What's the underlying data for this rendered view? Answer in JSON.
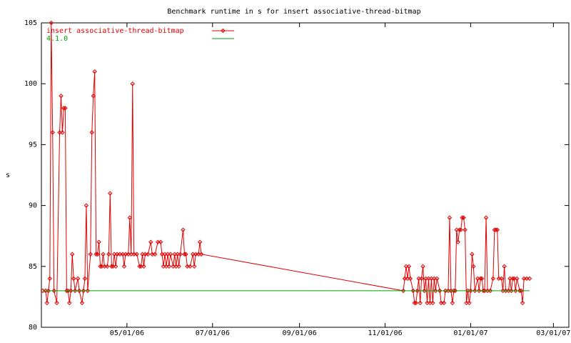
{
  "chart_data": {
    "type": "line",
    "title": "Benchmark runtime in s for insert associative-thread-bitmap",
    "y_label": "s",
    "legend": "top-left",
    "xlim": [
      "2006-03-01",
      "2007-03-12"
    ],
    "xticks": [
      {
        "value": "2006-05-01",
        "label": "05/01/06"
      },
      {
        "value": "2006-07-01",
        "label": "07/01/06"
      },
      {
        "value": "2006-09-01",
        "label": "09/01/06"
      },
      {
        "value": "2006-11-01",
        "label": "11/01/06"
      },
      {
        "value": "2007-01-01",
        "label": "01/01/07"
      },
      {
        "value": "2007-03-01",
        "label": "03/01/07"
      }
    ],
    "ylim": [
      80,
      105
    ],
    "yticks": [
      80,
      85,
      90,
      95,
      100,
      105
    ],
    "series": [
      {
        "name": "insert associative-thread-bitmap",
        "color": "#e00000",
        "markers": true,
        "x": [
          "2006-03-02",
          "2006-03-04",
          "2006-03-05",
          "2006-03-06",
          "2006-03-07",
          "2006-03-08",
          "2006-03-09",
          "2006-03-10",
          "2006-03-12",
          "2006-03-14",
          "2006-03-15",
          "2006-03-16",
          "2006-03-17",
          "2006-03-18",
          "2006-03-19",
          "2006-03-20",
          "2006-03-21",
          "2006-03-22",
          "2006-03-23",
          "2006-03-24",
          "2006-03-25",
          "2006-03-27",
          "2006-03-28",
          "2006-03-30",
          "2006-03-31",
          "2006-04-01",
          "2006-04-02",
          "2006-04-03",
          "2006-04-05",
          "2006-04-06",
          "2006-04-07",
          "2006-04-08",
          "2006-04-09",
          "2006-04-10",
          "2006-04-11",
          "2006-04-12",
          "2006-04-13",
          "2006-04-14",
          "2006-04-15",
          "2006-04-17",
          "2006-04-18",
          "2006-04-19",
          "2006-04-20",
          "2006-04-21",
          "2006-04-22",
          "2006-04-23",
          "2006-04-24",
          "2006-04-26",
          "2006-04-28",
          "2006-04-29",
          "2006-04-30",
          "2006-05-02",
          "2006-05-03",
          "2006-05-04",
          "2006-05-05",
          "2006-05-06",
          "2006-05-08",
          "2006-05-10",
          "2006-05-11",
          "2006-05-12",
          "2006-05-13",
          "2006-05-14",
          "2006-05-16",
          "2006-05-18",
          "2006-05-19",
          "2006-05-21",
          "2006-05-23",
          "2006-05-25",
          "2006-05-26",
          "2006-05-27",
          "2006-05-28",
          "2006-05-29",
          "2006-05-30",
          "2006-05-31",
          "2006-06-01",
          "2006-06-03",
          "2006-06-04",
          "2006-06-05",
          "2006-06-06",
          "2006-06-07",
          "2006-06-08",
          "2006-06-10",
          "2006-06-11",
          "2006-06-12",
          "2006-06-13",
          "2006-06-15",
          "2006-06-17",
          "2006-06-18",
          "2006-06-19",
          "2006-06-21",
          "2006-06-22",
          "2006-06-23",
          "2006-11-14",
          "2006-11-15",
          "2006-11-16",
          "2006-11-17",
          "2006-11-18",
          "2006-11-19",
          "2006-11-21",
          "2006-11-22",
          "2006-11-23",
          "2006-11-24",
          "2006-11-25",
          "2006-11-26",
          "2006-11-27",
          "2006-11-28",
          "2006-11-29",
          "2006-11-30",
          "2006-12-01",
          "2006-12-02",
          "2006-12-03",
          "2006-12-04",
          "2006-12-05",
          "2006-12-06",
          "2006-12-07",
          "2006-12-08",
          "2006-12-10",
          "2006-12-11",
          "2006-12-13",
          "2006-12-14",
          "2006-12-16",
          "2006-12-17",
          "2006-12-18",
          "2006-12-19",
          "2006-12-20",
          "2006-12-21",
          "2006-12-22",
          "2006-12-23",
          "2006-12-24",
          "2006-12-25",
          "2006-12-26",
          "2006-12-27",
          "2006-12-28",
          "2006-12-29",
          "2006-12-30",
          "2006-12-31",
          "2007-01-01",
          "2007-01-02",
          "2007-01-03",
          "2007-01-04",
          "2007-01-06",
          "2007-01-07",
          "2007-01-08",
          "2007-01-09",
          "2007-01-10",
          "2007-01-11",
          "2007-01-12",
          "2007-01-13",
          "2007-01-15",
          "2007-01-17",
          "2007-01-18",
          "2007-01-19",
          "2007-01-20",
          "2007-01-21",
          "2007-01-23",
          "2007-01-24",
          "2007-01-25",
          "2007-01-26",
          "2007-01-28",
          "2007-01-29",
          "2007-01-30",
          "2007-01-31",
          "2007-02-01",
          "2007-02-02",
          "2007-02-03",
          "2007-02-05",
          "2007-02-06",
          "2007-02-07",
          "2007-02-08",
          "2007-02-10",
          "2007-02-12"
        ],
        "values": [
          83,
          83,
          82,
          83,
          84,
          105,
          96,
          83,
          82,
          96,
          99,
          96,
          98,
          98,
          83,
          83,
          82,
          83,
          86,
          84,
          83,
          84,
          83,
          82,
          83,
          84,
          90,
          83,
          86,
          96,
          99,
          101,
          86,
          86,
          87,
          85,
          85,
          86,
          85,
          85,
          86,
          91,
          85,
          85,
          86,
          85,
          86,
          86,
          86,
          85,
          86,
          86,
          89,
          86,
          100,
          86,
          86,
          85,
          85,
          86,
          85,
          86,
          86,
          87,
          86,
          86,
          87,
          87,
          86,
          85,
          86,
          85,
          86,
          85,
          86,
          85,
          86,
          85,
          86,
          85,
          86,
          88,
          86,
          86,
          85,
          85,
          86,
          85,
          86,
          86,
          87,
          86,
          83,
          84,
          85,
          84,
          85,
          84,
          83,
          82,
          82,
          83,
          84,
          82,
          84,
          85,
          83,
          84,
          82,
          84,
          82,
          84,
          82,
          84,
          83,
          84,
          83,
          82,
          82,
          83,
          83,
          89,
          83,
          82,
          83,
          83,
          88,
          87,
          88,
          88,
          89,
          89,
          88,
          82,
          83,
          82,
          83,
          86,
          85,
          83,
          84,
          83,
          84,
          84,
          83,
          83,
          89,
          83,
          83,
          84,
          88,
          88,
          88,
          84,
          84,
          83,
          85,
          83,
          83,
          84,
          83,
          84,
          84,
          83,
          84,
          83,
          83,
          82,
          84,
          84,
          84
        ]
      },
      {
        "name": "4.1.0",
        "color": "#00a000",
        "markers": false,
        "x": [
          "2006-03-02",
          "2007-02-12"
        ],
        "values": [
          83,
          83
        ]
      }
    ]
  }
}
